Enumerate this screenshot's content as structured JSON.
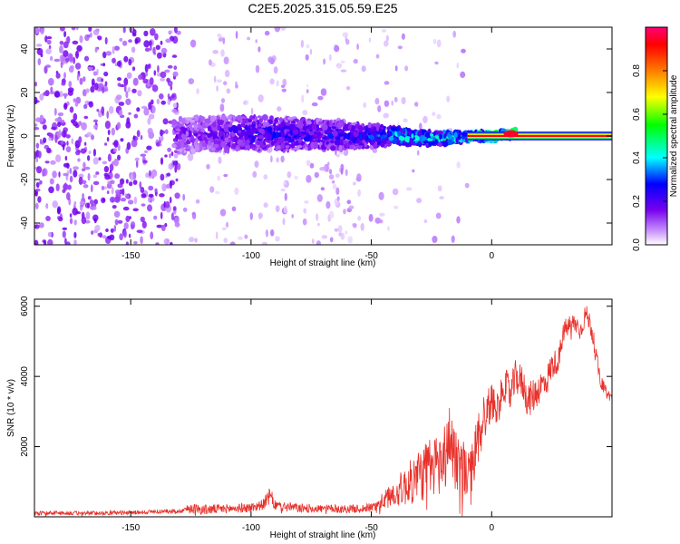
{
  "title": "C2E5.2025.315.05.59.E25",
  "chart_data": [
    {
      "type": "heatmap",
      "name": "spectrogram",
      "xlabel": "Height of straight line (km)",
      "ylabel": "Frequency (Hz)",
      "xlim": [
        -190,
        50
      ],
      "ylim": [
        -50,
        50
      ],
      "x_ticks": [
        -150,
        -100,
        -50,
        0
      ],
      "y_ticks": [
        -40,
        -20,
        0,
        20,
        40
      ],
      "x_tick_labels": [
        "-150",
        "-100",
        "-50",
        "0"
      ],
      "y_tick_labels": [
        "-40",
        "-20",
        "0",
        "20",
        "40"
      ],
      "band": {
        "x": [
          -190,
          -160,
          -130,
          -120,
          -100,
          -80,
          -60,
          -50,
          -40,
          -30,
          -20,
          -10,
          0,
          10,
          20,
          30,
          40,
          50
        ],
        "center_hz": [
          0,
          0,
          0,
          1,
          1,
          1,
          0,
          0,
          0,
          -1,
          -1,
          0,
          0,
          1,
          0,
          0,
          0,
          0
        ],
        "half_width_hz": [
          50,
          50,
          8,
          8,
          8,
          7,
          6,
          5,
          4,
          3,
          3,
          2,
          2,
          2,
          1,
          1,
          1,
          1
        ],
        "peak_amplitude": [
          0.05,
          0.05,
          0.2,
          0.2,
          0.3,
          0.3,
          0.3,
          0.35,
          0.5,
          0.55,
          0.6,
          0.7,
          0.9,
          0.95,
          0.9,
          0.92,
          0.92,
          0.92
        ]
      },
      "colorbar": {
        "label": "Normalized spectral amplitude",
        "ticks": [
          0.0,
          0.2,
          0.4,
          0.6,
          0.8
        ],
        "tick_labels": [
          "0.0",
          "0.2",
          "0.4",
          "0.6",
          "0.8"
        ],
        "range": [
          0,
          1
        ]
      }
    },
    {
      "type": "line",
      "name": "snr",
      "xlabel": "Height of straight line (km)",
      "ylabel": "SNR (10 * v/v)",
      "xlim": [
        -190,
        50
      ],
      "ylim": [
        0,
        6200
      ],
      "x_ticks": [
        -150,
        -100,
        -50,
        0
      ],
      "y_ticks": [
        2000,
        4000,
        6000
      ],
      "x_tick_labels": [
        "-150",
        "-100",
        "-50",
        "0"
      ],
      "y_tick_labels": [
        "2000",
        "4000",
        "6000"
      ],
      "series": [
        {
          "name": "SNR",
          "color": "#e8302a",
          "x": [
            -190,
            -180,
            -170,
            -160,
            -150,
            -140,
            -130,
            -125,
            -120,
            -110,
            -100,
            -95,
            -92,
            -90,
            -85,
            -80,
            -70,
            -60,
            -55,
            -50,
            -45,
            -40,
            -35,
            -30,
            -25,
            -20,
            -17,
            -15,
            -12,
            -10,
            -7,
            -5,
            -2,
            0,
            3,
            5,
            8,
            10,
            13,
            15,
            18,
            20,
            23,
            25,
            28,
            30,
            33,
            35,
            37,
            39,
            41,
            43,
            45,
            48,
            50
          ],
          "values": [
            100,
            110,
            100,
            110,
            120,
            150,
            160,
            250,
            200,
            230,
            260,
            350,
            600,
            320,
            280,
            250,
            230,
            220,
            230,
            260,
            450,
            700,
            900,
            1200,
            1400,
            1600,
            2300,
            1700,
            1400,
            1100,
            1700,
            2500,
            3000,
            3300,
            3100,
            3800,
            3500,
            4000,
            3800,
            3300,
            3500,
            3700,
            3900,
            4300,
            4500,
            5300,
            5500,
            5500,
            5300,
            5800,
            5500,
            4800,
            3900,
            3500,
            3400
          ],
          "noise": [
            60,
            60,
            60,
            60,
            60,
            60,
            60,
            150,
            150,
            130,
            140,
            150,
            250,
            150,
            150,
            130,
            120,
            120,
            120,
            130,
            250,
            400,
            600,
            800,
            900,
            1000,
            1100,
            1000,
            900,
            700,
            800,
            900,
            700,
            500,
            500,
            500,
            500,
            500,
            500,
            500,
            500,
            450,
            450,
            400,
            350,
            300,
            300,
            300,
            300,
            300,
            300,
            250,
            200,
            150,
            150
          ]
        }
      ]
    }
  ]
}
